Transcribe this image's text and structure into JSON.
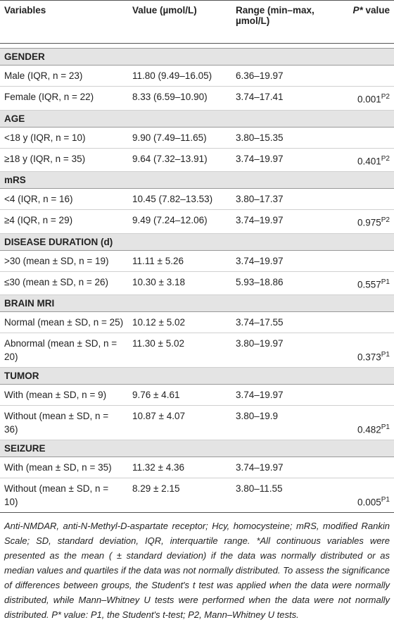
{
  "header": {
    "variables": "Variables",
    "value": "Value (µmol/L)",
    "range": "Range (min–max, µmol/L)",
    "p_symbol": "P*",
    "p_rest": "value"
  },
  "groups": [
    {
      "title": "GENDER",
      "rows": [
        [
          "Male (IQR, n = 23)",
          "11.80 (9.49–16.05)",
          "6.36–19.97"
        ],
        [
          "Female (IQR, n = 22)",
          "8.33 (6.59–10.90)",
          "3.74–17.41"
        ]
      ],
      "p": "0.001",
      "test": "P2"
    },
    {
      "title": "AGE",
      "rows": [
        [
          "<18 y (IQR, n = 10)",
          "9.90 (7.49–11.65)",
          "3.80–15.35"
        ],
        [
          "≥18 y (IQR, n = 35)",
          "9.64 (7.32–13.91)",
          "3.74–19.97"
        ]
      ],
      "p": "0.401",
      "test": "P2"
    },
    {
      "title": "mRS",
      "rows": [
        [
          "<4 (IQR, n = 16)",
          "10.45 (7.82–13.53)",
          "3.80–17.37"
        ],
        [
          "≥4 (IQR, n = 29)",
          "9.49 (7.24–12.06)",
          "3.74–19.97"
        ]
      ],
      "p": "0.975",
      "test": "P2"
    },
    {
      "title": "DISEASE DURATION (d)",
      "rows": [
        [
          ">30 (mean ± SD, n = 19)",
          "11.11 ± 5.26",
          "3.74–19.97"
        ],
        [
          "≤30 (mean ± SD, n = 26)",
          "10.30 ± 3.18",
          "5.93–18.86"
        ]
      ],
      "p": "0.557",
      "test": "P1"
    },
    {
      "title": "BRAIN MRI",
      "rows": [
        [
          "Normal (mean ± SD, n = 25)",
          "10.12 ± 5.02",
          "3.74–17.55"
        ],
        [
          "Abnormal (mean ± SD, n = 20)",
          "11.30 ± 5.02",
          "3.80–19.97"
        ]
      ],
      "p": "0.373",
      "test": "P1"
    },
    {
      "title": "TUMOR",
      "rows": [
        [
          "With (mean ± SD, n = 9)",
          "9.76 ± 4.61",
          "3.74–19.97"
        ],
        [
          "Without (mean ± SD, n = 36)",
          "10.87 ± 4.07",
          "3.80–19.9"
        ]
      ],
      "p": "0.482",
      "test": "P1"
    },
    {
      "title": "SEIZURE",
      "rows": [
        [
          "With (mean ± SD, n = 35)",
          "11.32 ± 4.36",
          "3.74–19.97"
        ],
        [
          "Without (mean ± SD, n = 10)",
          "8.29 ± 2.15",
          "3.80–11.55"
        ]
      ],
      "p": "0.005",
      "test": "P1"
    }
  ],
  "footnote": "Anti-NMDAR, anti-N-Methyl-D-aspartate receptor; Hcy, homocysteine; mRS, modified Rankin Scale; SD, standard deviation, IQR, interquartile range. *All continuous variables were presented as the mean ( ± standard deviation) if the data was normally distributed or as median values and quartiles if the data was not normally distributed. To assess the significance of differences between groups, the Student's t test was applied when the data were normally distributed, while Mann–Whitney U tests were performed when the data were not normally distributed. P* value: P1, the Student's t-test; P2, Mann–Whitney U tests."
}
